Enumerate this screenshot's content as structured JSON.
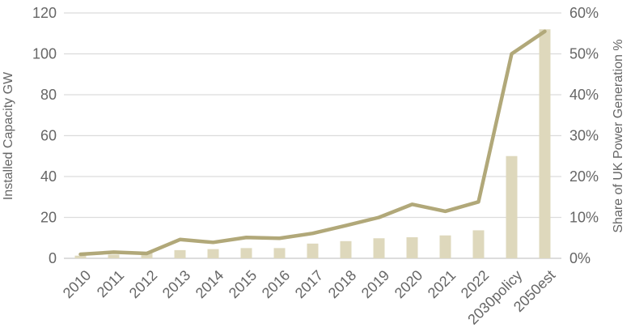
{
  "chart_data": {
    "type": "combo",
    "title": "",
    "categories": [
      "2010",
      "2011",
      "2012",
      "2013",
      "2014",
      "2015",
      "2016",
      "2017",
      "2018",
      "2019",
      "2020",
      "2021",
      "2022",
      "2030policy",
      "2050est"
    ],
    "series": [
      {
        "name": "Installed Capacity GW",
        "type": "bar",
        "axis": "left",
        "color": "#ded8bc",
        "values": [
          1.3,
          1.8,
          2.9,
          4.0,
          4.5,
          5.0,
          5.0,
          7.2,
          8.4,
          9.8,
          10.3,
          11.2,
          13.7,
          50,
          112
        ]
      },
      {
        "name": "Share of UK Power Generation %",
        "type": "line",
        "axis": "right",
        "color": "#b1a879",
        "values": [
          1.0,
          1.5,
          1.2,
          4.6,
          3.9,
          5.1,
          4.9,
          6.1,
          8.0,
          10.0,
          13.2,
          11.5,
          13.8,
          50.0,
          55.5
        ]
      }
    ],
    "left_axis": {
      "title": "Installed Capacity GW",
      "min": 0,
      "max": 120,
      "tick_step": 20,
      "ticks": [
        "0",
        "20",
        "40",
        "60",
        "80",
        "100",
        "120"
      ]
    },
    "right_axis": {
      "title": "Share of UK Power Generation %",
      "min": 0,
      "max": 60,
      "tick_step": 10,
      "ticks": [
        "0%",
        "10%",
        "20%",
        "30%",
        "40%",
        "50%",
        "60%"
      ]
    },
    "x_axis": {
      "label_rotation_deg": -45
    },
    "legend": "none",
    "grid": true,
    "colors": {
      "gridline": "#dcdcdc",
      "axis_line": "#d2d2d2",
      "text": "#666666",
      "background": "#ffffff"
    }
  }
}
